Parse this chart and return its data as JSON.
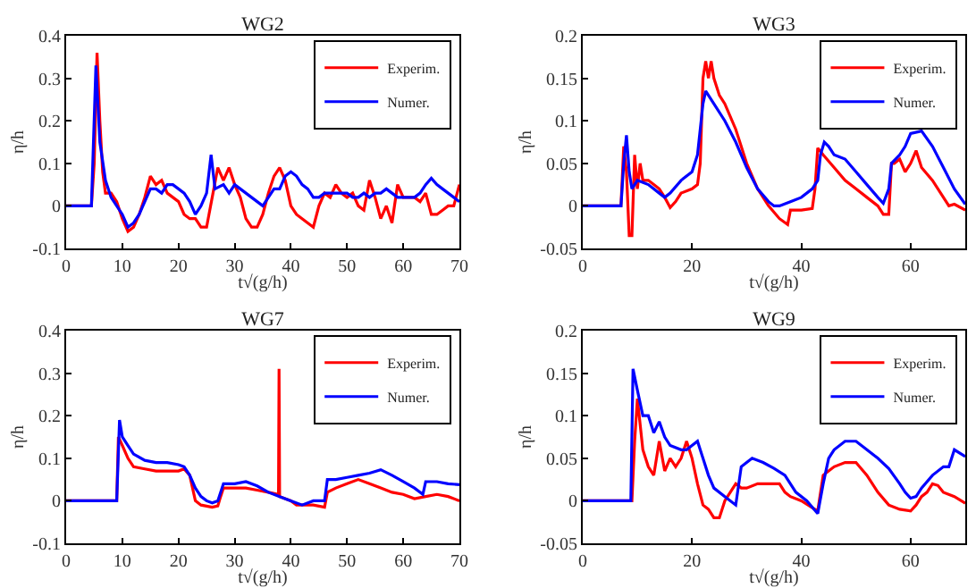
{
  "chart_data": [
    {
      "type": "line",
      "title": "WG2",
      "xlabel": "t√(g/h)",
      "ylabel": "η/h",
      "xlim": [
        0,
        70
      ],
      "ylim": [
        -0.1,
        0.4
      ],
      "xticks": [
        0,
        10,
        20,
        30,
        40,
        50,
        60,
        70
      ],
      "yticks": [
        -0.1,
        0,
        0.1,
        0.2,
        0.3,
        0.4
      ],
      "grid": false,
      "legend": "top right",
      "series": [
        {
          "name": "Experim.",
          "color": "#ff0000",
          "x": [
            0,
            4.5,
            5,
            5.5,
            6,
            6.5,
            7,
            8,
            9,
            10,
            11,
            12,
            13,
            14,
            15,
            16,
            17,
            18,
            20,
            21,
            22,
            23,
            24,
            25,
            26,
            27,
            28,
            29,
            30,
            31,
            32,
            33,
            34,
            35,
            36,
            37,
            38,
            39,
            40,
            41,
            42,
            43,
            44,
            45,
            46,
            47,
            48,
            49,
            50,
            51,
            52,
            53,
            54,
            55,
            56,
            57,
            58,
            59,
            60,
            62,
            63,
            64,
            65,
            66,
            67,
            68,
            69,
            70
          ],
          "values": [
            0,
            0,
            0.1,
            0.36,
            0.2,
            0.08,
            0.03,
            0.03,
            0.01,
            -0.03,
            -0.06,
            -0.05,
            -0.02,
            0.02,
            0.07,
            0.05,
            0.06,
            0.03,
            0.01,
            -0.02,
            -0.03,
            -0.03,
            -0.05,
            -0.05,
            0.02,
            0.09,
            0.06,
            0.09,
            0.05,
            0.02,
            -0.03,
            -0.05,
            -0.05,
            -0.02,
            0.03,
            0.07,
            0.09,
            0.06,
            0,
            -0.02,
            -0.03,
            -0.04,
            -0.05,
            0,
            0.03,
            0.02,
            0.05,
            0.03,
            0.02,
            0.03,
            0,
            -0.01,
            0.06,
            0.02,
            -0.03,
            0,
            -0.04,
            0.05,
            0.02,
            0.02,
            0.01,
            0.03,
            -0.02,
            -0.02,
            -0.01,
            0,
            0,
            0.05
          ]
        },
        {
          "name": "Numer.",
          "color": "#0000ff",
          "x": [
            0,
            4.5,
            5.3,
            6,
            7,
            8,
            9,
            10,
            11,
            12,
            13,
            14,
            15,
            16,
            17,
            18,
            19,
            20,
            21,
            22,
            23,
            24,
            25,
            25.8,
            26.5,
            28,
            29,
            30,
            31,
            32,
            33,
            34,
            35,
            36,
            37,
            38,
            39,
            40,
            41,
            42,
            43,
            44,
            45,
            46,
            48,
            50,
            51,
            52,
            53,
            54,
            55,
            56,
            57,
            58,
            59,
            60,
            62,
            63,
            64,
            65,
            66,
            67,
            68,
            69,
            70
          ],
          "values": [
            0,
            0,
            0.33,
            0.15,
            0.06,
            0.02,
            0,
            -0.02,
            -0.05,
            -0.04,
            -0.02,
            0.01,
            0.04,
            0.04,
            0.03,
            0.05,
            0.05,
            0.04,
            0.03,
            0.01,
            -0.02,
            0,
            0.03,
            0.12,
            0.04,
            0.05,
            0.03,
            0.05,
            0.04,
            0.03,
            0.02,
            0.01,
            0,
            0.02,
            0.04,
            0.04,
            0.07,
            0.08,
            0.07,
            0.05,
            0.04,
            0.02,
            0.02,
            0.03,
            0.03,
            0.03,
            0.02,
            0.02,
            0.03,
            0.02,
            0.03,
            0.03,
            0.04,
            0.03,
            0.02,
            0.02,
            0.02,
            0.03,
            0.05,
            0.065,
            0.05,
            0.04,
            0.03,
            0.02,
            0.01
          ]
        }
      ]
    },
    {
      "type": "line",
      "title": "WG3",
      "xlabel": "t√(g/h)",
      "ylabel": "η/h",
      "xlim": [
        0,
        70
      ],
      "ylim": [
        -0.05,
        0.2
      ],
      "xticks": [
        0,
        20,
        40,
        60
      ],
      "yticks": [
        -0.05,
        0,
        0.05,
        0.1,
        0.15,
        0.2
      ],
      "grid": false,
      "legend": "top right",
      "series": [
        {
          "name": "Experim.",
          "color": "#ff0000",
          "x": [
            0,
            7,
            7.5,
            8,
            8.5,
            9,
            9.5,
            10,
            10.5,
            11,
            12,
            13,
            14,
            15,
            16,
            17,
            18,
            20,
            21,
            21.5,
            22,
            22.5,
            23,
            23.5,
            24,
            25,
            26,
            28,
            30,
            32,
            34,
            36,
            37.5,
            38,
            40,
            42,
            42.5,
            43,
            44,
            46,
            48,
            50,
            52,
            54,
            55,
            56,
            56.5,
            57,
            58,
            59,
            60,
            61,
            62,
            64,
            66,
            67,
            68,
            70
          ],
          "values": [
            0,
            0,
            0.07,
            0.04,
            -0.035,
            -0.035,
            0.06,
            0.02,
            0.05,
            0.03,
            0.03,
            0.025,
            0.02,
            0.01,
            -0.002,
            0.005,
            0.015,
            0.02,
            0.025,
            0.05,
            0.15,
            0.17,
            0.15,
            0.17,
            0.15,
            0.13,
            0.12,
            0.09,
            0.05,
            0.02,
            0,
            -0.015,
            -0.022,
            -0.005,
            -0.005,
            -0.003,
            0.02,
            0.068,
            0.06,
            0.045,
            0.03,
            0.02,
            0.01,
            0,
            -0.01,
            -0.01,
            0.05,
            0.05,
            0.055,
            0.04,
            0.05,
            0.065,
            0.045,
            0.03,
            0.01,
            0,
            0.002,
            -0.005
          ]
        },
        {
          "name": "Numer.",
          "color": "#0000ff",
          "x": [
            0,
            7,
            7.5,
            8,
            8.5,
            9,
            10,
            12,
            14,
            15,
            16,
            18,
            20,
            21,
            22,
            22.5,
            24,
            26,
            28,
            30,
            32,
            34,
            35,
            36,
            38,
            40,
            42,
            43,
            43.5,
            44.2,
            45,
            46,
            48,
            50,
            52,
            54,
            55,
            56,
            56.5,
            58,
            59,
            60,
            62,
            64,
            66,
            68,
            70
          ],
          "values": [
            0,
            0,
            0.05,
            0.083,
            0.04,
            0.02,
            0.03,
            0.025,
            0.015,
            0.01,
            0.015,
            0.03,
            0.04,
            0.06,
            0.12,
            0.135,
            0.12,
            0.1,
            0.075,
            0.045,
            0.02,
            0.005,
            0,
            0,
            0.005,
            0.01,
            0.02,
            0.03,
            0.06,
            0.075,
            0.07,
            0.06,
            0.055,
            0.04,
            0.025,
            0.01,
            0.003,
            0.02,
            0.05,
            0.06,
            0.07,
            0.085,
            0.088,
            0.07,
            0.045,
            0.02,
            0.002
          ]
        }
      ]
    },
    {
      "type": "line",
      "title": "WG7",
      "xlabel": "t√(g/h)",
      "ylabel": "η/h",
      "xlim": [
        0,
        70
      ],
      "ylim": [
        -0.1,
        0.4
      ],
      "xticks": [
        0,
        10,
        20,
        30,
        40,
        50,
        60,
        70
      ],
      "yticks": [
        -0.1,
        0,
        0.1,
        0.2,
        0.3,
        0.4
      ],
      "grid": false,
      "legend": "top right",
      "series": [
        {
          "name": "Experim.",
          "color": "#ff0000",
          "x": [
            0,
            9,
            9.3,
            10,
            11,
            12,
            14,
            16,
            18,
            20,
            21,
            22,
            23,
            24,
            26,
            27,
            27.5,
            28,
            30,
            32,
            34,
            36,
            37.8,
            37.9,
            38,
            40,
            41,
            44,
            46,
            46.5,
            48,
            50,
            52,
            54,
            56,
            58,
            60,
            62,
            64,
            66,
            68,
            70
          ],
          "values": [
            0,
            0,
            0.15,
            0.13,
            0.1,
            0.08,
            0.075,
            0.07,
            0.07,
            0.07,
            0.075,
            0.06,
            0,
            -0.01,
            -0.015,
            -0.012,
            0.01,
            0.03,
            0.03,
            0.03,
            0.025,
            0.02,
            0.015,
            0.31,
            0.01,
            0,
            -0.01,
            -0.01,
            -0.015,
            0.02,
            0.03,
            0.04,
            0.05,
            0.04,
            0.03,
            0.02,
            0.015,
            0.005,
            0.01,
            0.015,
            0.01,
            0
          ]
        },
        {
          "name": "Numer.",
          "color": "#0000ff",
          "x": [
            0,
            9,
            9.5,
            10,
            11,
            12,
            14,
            16,
            18,
            20,
            21,
            22,
            23,
            24,
            25,
            26,
            27,
            28,
            30,
            32,
            34,
            36,
            38,
            40,
            42,
            44,
            46,
            46.5,
            48,
            50,
            52,
            54,
            56,
            58,
            60,
            62,
            63.5,
            64,
            66,
            68,
            70
          ],
          "values": [
            0,
            0,
            0.19,
            0.15,
            0.13,
            0.11,
            0.095,
            0.09,
            0.09,
            0.085,
            0.08,
            0.06,
            0.03,
            0.01,
            0,
            -0.005,
            0,
            0.04,
            0.04,
            0.045,
            0.035,
            0.02,
            0.01,
            0,
            -0.01,
            0,
            0,
            0.05,
            0.05,
            0.055,
            0.06,
            0.065,
            0.073,
            0.06,
            0.045,
            0.03,
            0.015,
            0.045,
            0.045,
            0.04,
            0.038
          ]
        }
      ]
    },
    {
      "type": "line",
      "title": "WG9",
      "xlabel": "t√(g/h)",
      "ylabel": "η/h",
      "xlim": [
        0,
        70
      ],
      "ylim": [
        -0.05,
        0.2
      ],
      "xticks": [
        0,
        20,
        40,
        60
      ],
      "yticks": [
        -0.05,
        0,
        0.05,
        0.1,
        0.15,
        0.2
      ],
      "grid": false,
      "legend": "top right",
      "series": [
        {
          "name": "Experim.",
          "color": "#ff0000",
          "x": [
            0,
            9,
            9.5,
            10,
            11,
            12,
            13,
            14,
            15,
            16,
            17,
            18,
            19,
            20,
            21,
            22,
            23,
            24,
            25,
            26,
            27,
            28,
            29,
            30,
            32,
            34,
            36,
            37,
            38,
            40,
            42,
            43,
            44,
            45,
            46,
            48,
            50,
            52,
            54,
            56,
            58,
            60,
            61,
            62,
            63,
            64,
            65,
            66,
            68,
            70
          ],
          "values": [
            0,
            0,
            0.07,
            0.12,
            0.06,
            0.04,
            0.03,
            0.07,
            0.035,
            0.05,
            0.04,
            0.05,
            0.07,
            0.05,
            0.02,
            -0.005,
            -0.01,
            -0.02,
            -0.02,
            0,
            0.01,
            0.02,
            0.015,
            0.015,
            0.02,
            0.02,
            0.02,
            0.01,
            0.005,
            0,
            -0.008,
            -0.012,
            0.03,
            0.035,
            0.04,
            0.045,
            0.045,
            0.03,
            0.01,
            -0.005,
            -0.01,
            -0.012,
            -0.005,
            0.005,
            0.01,
            0.02,
            0.018,
            0.01,
            0.005,
            -0.003
          ]
        },
        {
          "name": "Numer.",
          "color": "#0000ff",
          "x": [
            0,
            8.8,
            9.2,
            10,
            11,
            12,
            13,
            14,
            15,
            16,
            18,
            19,
            20,
            21,
            22,
            23,
            24,
            26,
            28,
            29,
            30,
            31,
            33,
            35,
            37,
            39,
            41,
            43,
            44,
            45,
            46,
            48,
            50,
            52,
            54,
            56,
            58,
            59,
            60,
            61,
            62,
            64,
            66,
            67,
            68,
            70
          ],
          "values": [
            0,
            0,
            0.155,
            0.13,
            0.1,
            0.1,
            0.08,
            0.093,
            0.075,
            0.065,
            0.06,
            0.06,
            0.065,
            0.07,
            0.05,
            0.03,
            0.015,
            0.005,
            -0.005,
            0.04,
            0.045,
            0.05,
            0.045,
            0.038,
            0.03,
            0.01,
            0,
            -0.015,
            0.02,
            0.05,
            0.06,
            0.07,
            0.07,
            0.06,
            0.05,
            0.038,
            0.02,
            0.01,
            0.003,
            0.005,
            0.015,
            0.03,
            0.04,
            0.04,
            0.06,
            0.052
          ]
        }
      ]
    }
  ]
}
